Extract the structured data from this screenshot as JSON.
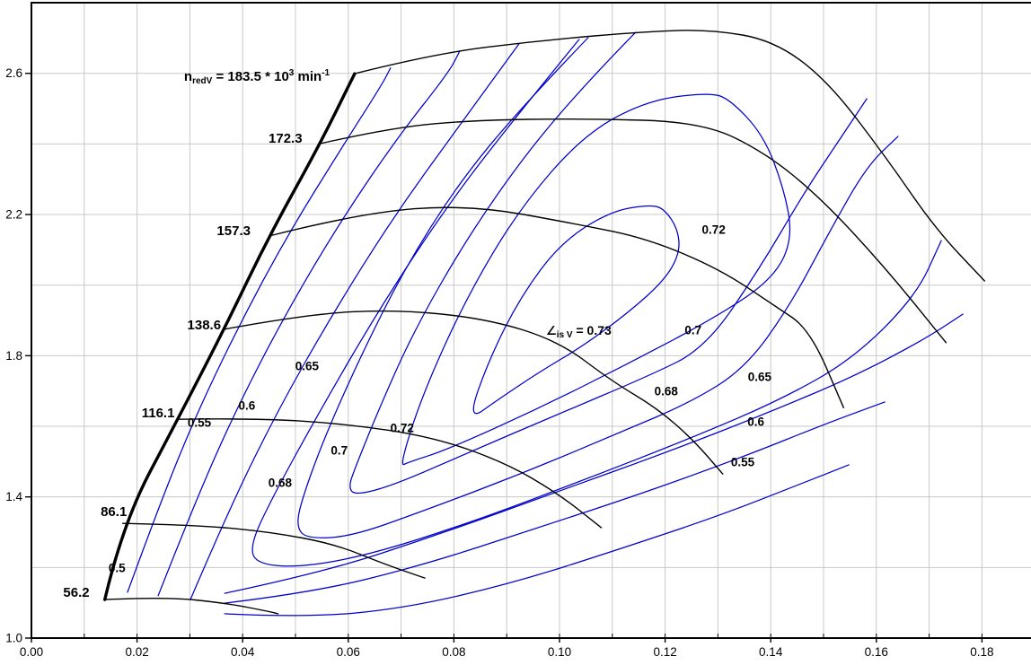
{
  "chart_data": {
    "type": "line",
    "figure_type": "compressor-map-with-efficiency-contours",
    "title_annotation": {
      "prefix": "n",
      "prefix_sub": "redV",
      "mid": " = 183.5 * 10",
      "exponent": "3",
      "unit": " min",
      "unit_exponent": "-1",
      "x": 0.0289,
      "y": 2.579
    },
    "eta_annotation": {
      "symbol": "∠",
      "subscript": "is V",
      "rest": " = 0.73",
      "x": 0.0974,
      "y": 1.86
    },
    "colors": {
      "grid": "#c8c8c8",
      "axis": "#000000",
      "speed_line": "#000000",
      "surge_line": "#000000",
      "contour": "#0000cc",
      "text": "#000000",
      "background": "#ffffff"
    },
    "x_axis": {
      "min": 0.0,
      "max": 0.19,
      "minor_step": 0.01,
      "major_step": 0.02,
      "tick_labels": [
        "0.00",
        "0.02",
        "0.04",
        "0.06",
        "0.08",
        "0.10",
        "0.12",
        "0.14",
        "0.16",
        "0.18"
      ]
    },
    "y_axis": {
      "min": 1.0,
      "max": 2.8,
      "minor_step": 0.2,
      "major_step": 0.4,
      "tick_labels": [
        "1.0",
        "1.4",
        "1.8",
        "2.2",
        "2.6"
      ]
    },
    "surge_line": {
      "points": [
        [
          0.0139,
          1.109
        ],
        [
          0.0173,
          1.325
        ],
        [
          0.0277,
          1.62
        ],
        [
          0.0365,
          1.875
        ],
        [
          0.045,
          2.139
        ],
        [
          0.0547,
          2.401
        ],
        [
          0.0612,
          2.599
        ]
      ]
    },
    "speed_lines": [
      {
        "label": "56.2",
        "label_x": 0.0085,
        "label_y": 1.13,
        "points": [
          [
            0.0139,
            1.109
          ],
          [
            0.025,
            1.117
          ],
          [
            0.0369,
            1.099
          ],
          [
            0.0454,
            1.074
          ],
          [
            0.0467,
            1.069
          ]
        ]
      },
      {
        "label": "86.1",
        "label_x": 0.0156,
        "label_y": 1.359,
        "points": [
          [
            0.0173,
            1.325
          ],
          [
            0.0318,
            1.32
          ],
          [
            0.0454,
            1.3
          ],
          [
            0.0573,
            1.267
          ],
          [
            0.0666,
            1.211
          ],
          [
            0.0745,
            1.17
          ]
        ]
      },
      {
        "label": "116.1",
        "label_x": 0.024,
        "label_y": 1.638,
        "points": [
          [
            0.0277,
            1.62
          ],
          [
            0.042,
            1.623
          ],
          [
            0.059,
            1.608
          ],
          [
            0.076,
            1.57
          ],
          [
            0.0896,
            1.498
          ],
          [
            0.0998,
            1.409
          ],
          [
            0.1079,
            1.313
          ]
        ]
      },
      {
        "label": "138.6",
        "label_x": 0.0327,
        "label_y": 1.887,
        "points": [
          [
            0.0365,
            1.875
          ],
          [
            0.0522,
            1.918
          ],
          [
            0.0692,
            1.931
          ],
          [
            0.0862,
            1.905
          ],
          [
            0.0998,
            1.842
          ],
          [
            0.11,
            1.727
          ],
          [
            0.1185,
            1.651
          ],
          [
            0.1253,
            1.562
          ],
          [
            0.1309,
            1.465
          ]
        ]
      },
      {
        "label": "157.3",
        "label_x": 0.0383,
        "label_y": 2.154,
        "points": [
          [
            0.045,
            2.139
          ],
          [
            0.0624,
            2.205
          ],
          [
            0.0828,
            2.228
          ],
          [
            0.1037,
            2.172
          ],
          [
            0.1168,
            2.131
          ],
          [
            0.1304,
            2.045
          ],
          [
            0.1406,
            1.943
          ],
          [
            0.1474,
            1.875
          ],
          [
            0.1538,
            1.653
          ]
        ]
      },
      {
        "label": "172.3",
        "label_x": 0.0481,
        "label_y": 2.416,
        "points": [
          [
            0.0547,
            2.401
          ],
          [
            0.0675,
            2.444
          ],
          [
            0.0828,
            2.467
          ],
          [
            0.1049,
            2.472
          ],
          [
            0.127,
            2.462
          ],
          [
            0.1389,
            2.376
          ],
          [
            0.1494,
            2.248
          ],
          [
            0.1615,
            2.053
          ],
          [
            0.1732,
            1.837
          ]
        ]
      },
      {
        "label": "183.5",
        "label_x": null,
        "label_y": null,
        "points": [
          [
            0.0612,
            2.599
          ],
          [
            0.076,
            2.655
          ],
          [
            0.0964,
            2.693
          ],
          [
            0.1168,
            2.719
          ],
          [
            0.1287,
            2.724
          ],
          [
            0.1406,
            2.693
          ],
          [
            0.1508,
            2.579
          ],
          [
            0.1618,
            2.363
          ],
          [
            0.1712,
            2.159
          ],
          [
            0.1805,
            2.012
          ]
        ]
      }
    ],
    "efficiency_contours": [
      {
        "level": 0.5,
        "closed": false,
        "segments": [
          [
            [
              0.0182,
              1.13
            ],
            [
              0.0238,
              1.359
            ],
            [
              0.0306,
              1.613
            ],
            [
              0.0391,
              1.88
            ],
            [
              0.0485,
              2.142
            ],
            [
              0.0587,
              2.388
            ],
            [
              0.0663,
              2.566
            ],
            [
              0.068,
              2.615
            ]
          ],
          [
            [
              0.0366,
              1.069
            ],
            [
              0.0519,
              1.058
            ],
            [
              0.0706,
              1.084
            ],
            [
              0.091,
              1.155
            ],
            [
              0.1114,
              1.252
            ],
            [
              0.1301,
              1.346
            ],
            [
              0.1454,
              1.435
            ],
            [
              0.1548,
              1.491
            ]
          ]
        ]
      },
      {
        "level": 0.55,
        "closed": false,
        "segments": [
          [
            [
              0.024,
              1.12
            ],
            [
              0.0306,
              1.371
            ],
            [
              0.0386,
              1.643
            ],
            [
              0.0481,
              1.918
            ],
            [
              0.0587,
              2.185
            ],
            [
              0.0697,
              2.426
            ],
            [
              0.0791,
              2.604
            ],
            [
              0.0811,
              2.663
            ]
          ],
          [
            [
              0.0366,
              1.099
            ],
            [
              0.0536,
              1.13
            ],
            [
              0.074,
              1.206
            ],
            [
              0.0961,
              1.313
            ],
            [
              0.1165,
              1.414
            ],
            [
              0.1352,
              1.516
            ],
            [
              0.1505,
              1.608
            ],
            [
              0.1616,
              1.669
            ]
          ]
        ]
      },
      {
        "level": 0.6,
        "closed": false,
        "segments": [
          [
            [
              0.0301,
              1.109
            ],
            [
              0.0374,
              1.364
            ],
            [
              0.0464,
              1.638
            ],
            [
              0.057,
              1.918
            ],
            [
              0.0685,
              2.192
            ],
            [
              0.0808,
              2.447
            ],
            [
              0.0923,
              2.683
            ]
          ],
          [
            [
              0.0366,
              1.127
            ],
            [
              0.0553,
              1.186
            ],
            [
              0.0774,
              1.295
            ],
            [
              0.0995,
              1.414
            ],
            [
              0.1199,
              1.524
            ],
            [
              0.1386,
              1.633
            ],
            [
              0.1556,
              1.74
            ],
            [
              0.1692,
              1.847
            ],
            [
              0.1764,
              1.918
            ]
          ]
        ]
      },
      {
        "level": 0.65,
        "closed": false,
        "segments": [
          [
            [
              0.1037,
              2.696
            ],
            [
              0.0901,
              2.447
            ],
            [
              0.0777,
              2.203
            ],
            [
              0.0655,
              1.923
            ],
            [
              0.0544,
              1.638
            ],
            [
              0.0451,
              1.384
            ],
            [
              0.0413,
              1.257
            ],
            [
              0.0429,
              1.208
            ],
            [
              0.0519,
              1.201
            ],
            [
              0.0655,
              1.242
            ],
            [
              0.0842,
              1.333
            ],
            [
              0.1046,
              1.448
            ],
            [
              0.125,
              1.567
            ],
            [
              0.142,
              1.676
            ],
            [
              0.1556,
              1.791
            ],
            [
              0.1675,
              1.969
            ],
            [
              0.1723,
              2.126
            ]
          ]
        ]
      },
      {
        "level": 0.68,
        "closed": false,
        "segments": [
          [
            [
              0.1054,
              2.701
            ],
            [
              0.0927,
              2.503
            ],
            [
              0.0808,
              2.287
            ],
            [
              0.0706,
              2.045
            ],
            [
              0.0621,
              1.791
            ],
            [
              0.0553,
              1.562
            ],
            [
              0.051,
              1.384
            ],
            [
              0.0502,
              1.313
            ],
            [
              0.0522,
              1.282
            ],
            [
              0.0604,
              1.287
            ],
            [
              0.074,
              1.359
            ],
            [
              0.0927,
              1.465
            ],
            [
              0.1114,
              1.582
            ],
            [
              0.125,
              1.669
            ],
            [
              0.1352,
              1.765
            ],
            [
              0.1437,
              1.943
            ],
            [
              0.1514,
              2.159
            ],
            [
              0.1582,
              2.337
            ],
            [
              0.1641,
              2.421
            ]
          ]
        ]
      },
      {
        "level": 0.7,
        "closed": false,
        "segments": [
          [
            [
              0.1144,
              2.716
            ],
            [
              0.1063,
              2.592
            ],
            [
              0.0944,
              2.388
            ],
            [
              0.0825,
              2.134
            ],
            [
              0.0723,
              1.867
            ],
            [
              0.0655,
              1.638
            ],
            [
              0.0614,
              1.486
            ],
            [
              0.06,
              1.427
            ],
            [
              0.0614,
              1.404
            ],
            [
              0.0689,
              1.435
            ],
            [
              0.0825,
              1.524
            ],
            [
              0.0995,
              1.633
            ],
            [
              0.1165,
              1.74
            ],
            [
              0.1276,
              1.821
            ],
            [
              0.1378,
              2.045
            ],
            [
              0.1463,
              2.261
            ],
            [
              0.1531,
              2.414
            ],
            [
              0.1582,
              2.528
            ]
          ]
        ]
      },
      {
        "level": 0.72,
        "closed": true,
        "segments": [
          [
            [
              0.0697,
              1.486
            ],
            [
              0.074,
              1.689
            ],
            [
              0.0825,
              1.969
            ],
            [
              0.0927,
              2.223
            ],
            [
              0.1046,
              2.426
            ],
            [
              0.1165,
              2.523
            ],
            [
              0.1284,
              2.546
            ],
            [
              0.1323,
              2.526
            ],
            [
              0.1386,
              2.426
            ],
            [
              0.1425,
              2.274
            ],
            [
              0.1442,
              2.134
            ],
            [
              0.1406,
              2.02
            ],
            [
              0.1301,
              1.913
            ],
            [
              0.1131,
              1.778
            ],
            [
              0.0961,
              1.651
            ],
            [
              0.0791,
              1.536
            ],
            [
              0.0714,
              1.498
            ]
          ]
        ]
      },
      {
        "level": 0.73,
        "closed": true,
        "segments": [
          [
            [
              0.0825,
              1.613
            ],
            [
              0.0867,
              1.791
            ],
            [
              0.0927,
              1.969
            ],
            [
              0.1003,
              2.121
            ],
            [
              0.1097,
              2.21
            ],
            [
              0.1173,
              2.228
            ],
            [
              0.1199,
              2.215
            ],
            [
              0.1224,
              2.159
            ],
            [
              0.1228,
              2.091
            ],
            [
              0.1199,
              2.014
            ],
            [
              0.1131,
              1.923
            ],
            [
              0.1046,
              1.829
            ],
            [
              0.0961,
              1.753
            ],
            [
              0.0884,
              1.676
            ]
          ]
        ]
      }
    ],
    "efficiency_labels": [
      {
        "text": "0.5",
        "x": 0.0162,
        "y": 1.198
      },
      {
        "text": "0.55",
        "x": 0.0318,
        "y": 1.61
      },
      {
        "text": "0.6",
        "x": 0.0408,
        "y": 1.659
      },
      {
        "text": "0.65",
        "x": 0.0522,
        "y": 1.77
      },
      {
        "text": "0.68",
        "x": 0.0471,
        "y": 1.44
      },
      {
        "text": "0.7",
        "x": 0.0583,
        "y": 1.531
      },
      {
        "text": "0.72",
        "x": 0.0702,
        "y": 1.595
      },
      {
        "text": "0.72",
        "x": 0.1292,
        "y": 2.157
      },
      {
        "text": "0.7",
        "x": 0.1253,
        "y": 1.872
      },
      {
        "text": "0.68",
        "x": 0.1202,
        "y": 1.699
      },
      {
        "text": "0.65",
        "x": 0.1379,
        "y": 1.74
      },
      {
        "text": "0.6",
        "x": 0.1372,
        "y": 1.613
      },
      {
        "text": "0.55",
        "x": 0.1347,
        "y": 1.498
      }
    ]
  }
}
